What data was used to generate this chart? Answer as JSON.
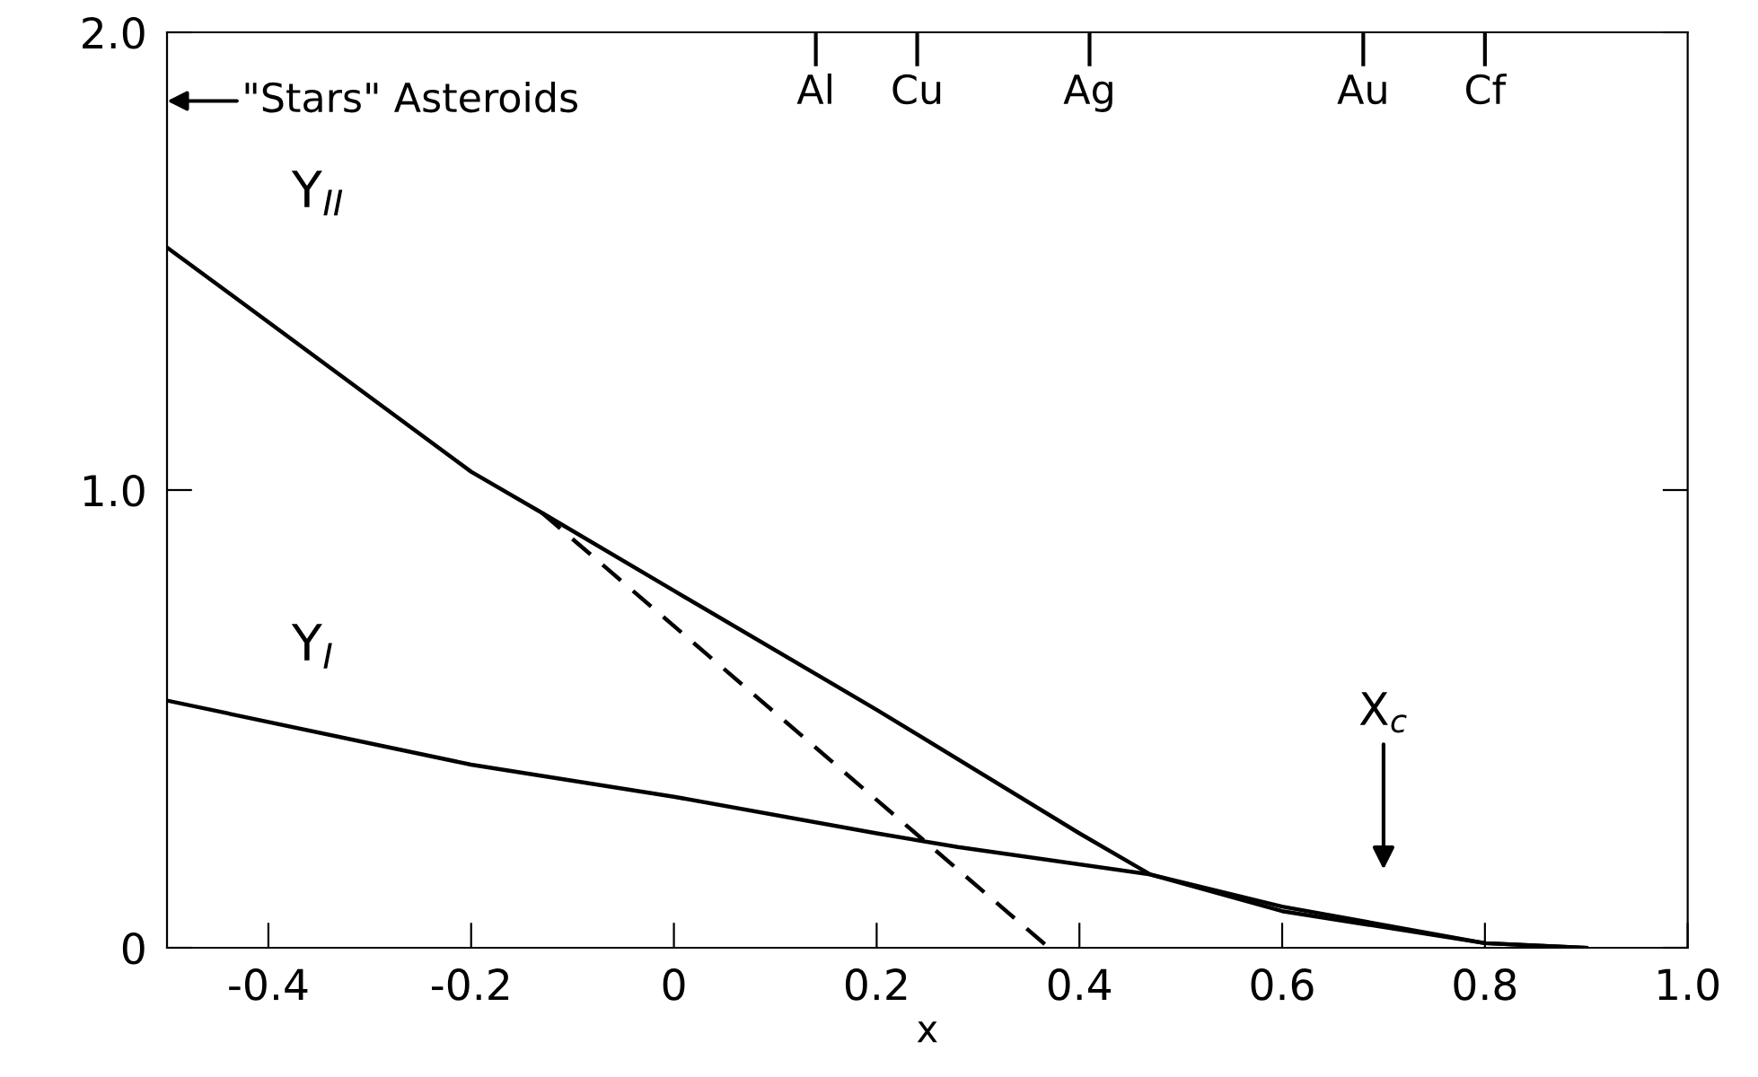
{
  "chart_data": {
    "type": "line",
    "xlabel": "x",
    "xlim": [
      -0.5,
      1.0
    ],
    "xticks": [
      -0.4,
      -0.2,
      0,
      0.2,
      0.4,
      0.6,
      0.8,
      {
        "value": 1.0,
        "label": "1.0"
      }
    ],
    "ylim": [
      0,
      2.0
    ],
    "yticks": [
      0,
      {
        "value": 1.0,
        "label": "1.0"
      },
      {
        "value": 2.0,
        "label": "2.0"
      }
    ],
    "ref_lines": [
      {
        "axis": "x",
        "value": 0.14,
        "label": "Al"
      },
      {
        "axis": "x",
        "value": 0.24,
        "label": "Cu"
      },
      {
        "axis": "x",
        "value": 0.41,
        "label": "Ag"
      },
      {
        "axis": "x",
        "value": 0.68,
        "label": "Au"
      },
      {
        "axis": "x",
        "value": 0.8,
        "label": "Cf"
      }
    ],
    "grid": false,
    "legend": false,
    "marker": "none",
    "series": [
      {
        "name": "Y$_{II}$",
        "color": "#000000",
        "line_style": "solid",
        "x": [
          -0.5,
          -0.2,
          -0.13,
          0,
          0.2,
          0.4,
          0.47,
          0.6,
          0.8,
          0.9
        ],
        "values": [
          1.53,
          1.04,
          0.95,
          0.78,
          0.52,
          0.25,
          0.16,
          0.08,
          0.01,
          0
        ]
      },
      {
        "name": "Y$_{I}$",
        "color": "#000000",
        "line_style": "solid",
        "x": [
          -0.5,
          -0.2,
          0,
          0.2,
          0.28,
          0.47,
          0.6,
          0.8,
          0.9
        ],
        "values": [
          0.54,
          0.4,
          0.33,
          0.25,
          0.22,
          0.16,
          0.09,
          0.01,
          0
        ]
      },
      {
        "color": "#000000",
        "line_style": "dashed",
        "x": [
          -0.13,
          0.37
        ],
        "values": [
          0.95,
          0
        ]
      }
    ],
    "annotations": [
      "\"Stars\" Asteroids",
      "X$_{c}$"
    ]
  }
}
